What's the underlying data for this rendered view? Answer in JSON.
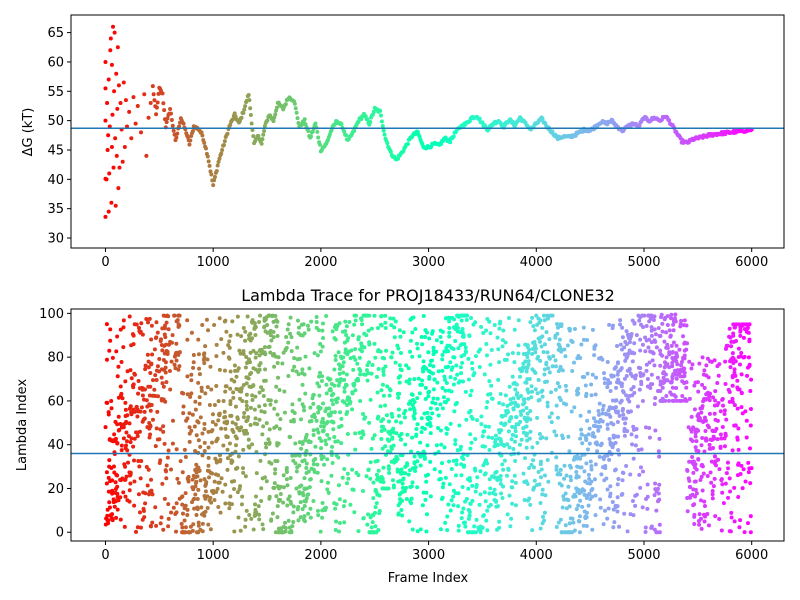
{
  "chart_data": [
    {
      "type": "scatter",
      "title": "",
      "xlabel": "",
      "ylabel": "ΔG (kT)",
      "xlim": [
        -320,
        6300
      ],
      "ylim": [
        28.3,
        68.0
      ],
      "xticks": [
        0,
        1000,
        2000,
        3000,
        4000,
        5000,
        6000
      ],
      "yticks": [
        30,
        35,
        40,
        45,
        50,
        55,
        60,
        65
      ],
      "grid": false,
      "colormap": "rainbow (red at frame 0, violet at frame 6000)",
      "hline": {
        "y": 48.7,
        "color": "#1f77b4"
      },
      "early_scatter": [
        {
          "x": 0,
          "y": 33.6
        },
        {
          "x": 0,
          "y": 40.1
        },
        {
          "x": 0,
          "y": 50.0
        },
        {
          "x": 0,
          "y": 55.5
        },
        {
          "x": 0,
          "y": 60.0
        },
        {
          "x": 10,
          "y": 40.0
        },
        {
          "x": 15,
          "y": 53.0
        },
        {
          "x": 20,
          "y": 45.0
        },
        {
          "x": 25,
          "y": 47.5
        },
        {
          "x": 30,
          "y": 34.5
        },
        {
          "x": 30,
          "y": 57.0
        },
        {
          "x": 35,
          "y": 41.0
        },
        {
          "x": 40,
          "y": 49.0
        },
        {
          "x": 45,
          "y": 62.0
        },
        {
          "x": 50,
          "y": 64.0
        },
        {
          "x": 55,
          "y": 36.0
        },
        {
          "x": 60,
          "y": 45.5
        },
        {
          "x": 60,
          "y": 59.5
        },
        {
          "x": 65,
          "y": 51.0
        },
        {
          "x": 70,
          "y": 66.0
        },
        {
          "x": 75,
          "y": 42.0
        },
        {
          "x": 80,
          "y": 55.0
        },
        {
          "x": 85,
          "y": 65.0
        },
        {
          "x": 90,
          "y": 47.0
        },
        {
          "x": 95,
          "y": 35.5
        },
        {
          "x": 100,
          "y": 58.0
        },
        {
          "x": 105,
          "y": 44.0
        },
        {
          "x": 110,
          "y": 52.0
        },
        {
          "x": 115,
          "y": 62.5
        },
        {
          "x": 120,
          "y": 38.5
        },
        {
          "x": 125,
          "y": 56.0
        },
        {
          "x": 130,
          "y": 42.0
        },
        {
          "x": 140,
          "y": 53.0
        },
        {
          "x": 150,
          "y": 48.5
        },
        {
          "x": 160,
          "y": 43.0
        },
        {
          "x": 170,
          "y": 56.5
        },
        {
          "x": 180,
          "y": 45.5
        },
        {
          "x": 190,
          "y": 53.5
        },
        {
          "x": 200,
          "y": 49.0
        },
        {
          "x": 220,
          "y": 51.5
        },
        {
          "x": 240,
          "y": 47.0
        },
        {
          "x": 260,
          "y": 54.0
        },
        {
          "x": 280,
          "y": 49.5
        },
        {
          "x": 300,
          "y": 52.5
        },
        {
          "x": 330,
          "y": 48.0
        },
        {
          "x": 360,
          "y": 54.5
        },
        {
          "x": 380,
          "y": 44.0
        },
        {
          "x": 400,
          "y": 50.5
        },
        {
          "x": 420,
          "y": 53.0
        }
      ],
      "trace": [
        [
          440,
          55.8
        ],
        [
          470,
          51.0
        ],
        [
          500,
          55.5
        ],
        [
          530,
          54.5
        ],
        [
          560,
          49.0
        ],
        [
          600,
          52.0
        ],
        [
          650,
          46.5
        ],
        [
          700,
          50.5
        ],
        [
          750,
          48.0
        ],
        [
          780,
          46.0
        ],
        [
          820,
          49.0
        ],
        [
          870,
          48.5
        ],
        [
          900,
          47.5
        ],
        [
          950,
          44.0
        ],
        [
          1000,
          39.0
        ],
        [
          1050,
          43.0
        ],
        [
          1100,
          46.0
        ],
        [
          1150,
          49.0
        ],
        [
          1200,
          51.0
        ],
        [
          1240,
          49.5
        ],
        [
          1280,
          51.5
        ],
        [
          1330,
          54.5
        ],
        [
          1350,
          51.0
        ],
        [
          1380,
          46.0
        ],
        [
          1420,
          47.5
        ],
        [
          1450,
          46.0
        ],
        [
          1480,
          49.0
        ],
        [
          1520,
          51.0
        ],
        [
          1560,
          50.0
        ],
        [
          1600,
          53.0
        ],
        [
          1650,
          52.0
        ],
        [
          1700,
          54.0
        ],
        [
          1750,
          53.5
        ],
        [
          1800,
          49.0
        ],
        [
          1850,
          50.0
        ],
        [
          1900,
          47.0
        ],
        [
          1950,
          49.5
        ],
        [
          2000,
          45.0
        ],
        [
          2050,
          46.0
        ],
        [
          2100,
          48.5
        ],
        [
          2150,
          50.0
        ],
        [
          2200,
          49.0
        ],
        [
          2250,
          46.5
        ],
        [
          2300,
          48.0
        ],
        [
          2350,
          50.0
        ],
        [
          2400,
          51.0
        ],
        [
          2450,
          49.5
        ],
        [
          2500,
          52.0
        ],
        [
          2550,
          51.5
        ],
        [
          2600,
          47.0
        ],
        [
          2650,
          44.5
        ],
        [
          2700,
          43.3
        ],
        [
          2750,
          44.5
        ],
        [
          2800,
          46.0
        ],
        [
          2850,
          47.5
        ],
        [
          2900,
          48.0
        ],
        [
          2950,
          45.5
        ],
        [
          3000,
          45.5
        ],
        [
          3050,
          46.0
        ],
        [
          3100,
          45.8
        ],
        [
          3150,
          47.0
        ],
        [
          3200,
          46.5
        ],
        [
          3250,
          48.0
        ],
        [
          3300,
          49.0
        ],
        [
          3350,
          49.5
        ],
        [
          3400,
          50.5
        ],
        [
          3450,
          50.8
        ],
        [
          3500,
          49.5
        ],
        [
          3550,
          48.5
        ],
        [
          3600,
          49.5
        ],
        [
          3650,
          50.0
        ],
        [
          3700,
          49.0
        ],
        [
          3750,
          50.2
        ],
        [
          3800,
          49.2
        ],
        [
          3850,
          50.5
        ],
        [
          3900,
          49.5
        ],
        [
          3950,
          48.5
        ],
        [
          4000,
          49.5
        ],
        [
          4050,
          50.3
        ],
        [
          4100,
          49.0
        ],
        [
          4150,
          48.0
        ],
        [
          4200,
          47.0
        ],
        [
          4250,
          47.3
        ],
        [
          4300,
          47.2
        ],
        [
          4350,
          47.5
        ],
        [
          4400,
          48.0
        ],
        [
          4450,
          48.5
        ],
        [
          4500,
          48.3
        ],
        [
          4550,
          49.0
        ],
        [
          4600,
          49.8
        ],
        [
          4650,
          49.5
        ],
        [
          4700,
          50.0
        ],
        [
          4750,
          49.0
        ],
        [
          4800,
          48.3
        ],
        [
          4850,
          49.0
        ],
        [
          4900,
          49.5
        ],
        [
          4950,
          49.0
        ],
        [
          5000,
          50.5
        ],
        [
          5050,
          50.0
        ],
        [
          5100,
          50.5
        ],
        [
          5150,
          50.0
        ],
        [
          5200,
          50.8
        ],
        [
          5250,
          49.5
        ],
        [
          5300,
          48.0
        ],
        [
          5350,
          46.5
        ],
        [
          5400,
          46.2
        ],
        [
          5450,
          46.8
        ],
        [
          5500,
          47.0
        ],
        [
          5600,
          47.5
        ],
        [
          5700,
          47.8
        ],
        [
          5800,
          48.0
        ],
        [
          5900,
          48.2
        ],
        [
          6000,
          48.5
        ]
      ]
    },
    {
      "type": "scatter",
      "title": "Lambda Trace for PROJ18433/RUN64/CLONE32",
      "xlabel": "Frame Index",
      "ylabel": "Lambda Index",
      "xlim": [
        -320,
        6300
      ],
      "ylim": [
        -4,
        102
      ],
      "xticks": [
        0,
        1000,
        2000,
        3000,
        4000,
        5000,
        6000
      ],
      "yticks": [
        0,
        20,
        40,
        60,
        80,
        100
      ],
      "grid": false,
      "colormap": "rainbow (red at frame 0, violet at frame 6000)",
      "hline": {
        "y": 36,
        "color": "#1f77b4"
      },
      "note": "dense scatter of roughly 6000 lambda samples spanning 0–99; visited lambda bands per frame range listed below",
      "bands": [
        {
          "x0": 0,
          "x1": 60,
          "lo": 3,
          "hi": 98
        },
        {
          "x0": 60,
          "x1": 500,
          "lo": 0,
          "hi": 99
        },
        {
          "x0": 500,
          "x1": 980,
          "lo": 0,
          "hi": 99
        },
        {
          "x0": 980,
          "x1": 1500,
          "lo": 0,
          "hi": 99
        },
        {
          "x0": 1500,
          "x1": 2000,
          "lo": 0,
          "hi": 99
        },
        {
          "x0": 2000,
          "x1": 2560,
          "lo": 0,
          "hi": 99
        },
        {
          "x0": 2560,
          "x1": 2700,
          "lo": 20,
          "hi": 99
        },
        {
          "x0": 2700,
          "x1": 3200,
          "lo": 0,
          "hi": 99
        },
        {
          "x0": 3200,
          "x1": 3700,
          "lo": 0,
          "hi": 99
        },
        {
          "x0": 3700,
          "x1": 4200,
          "lo": 0,
          "hi": 99
        },
        {
          "x0": 4200,
          "x1": 4750,
          "lo": 0,
          "hi": 95
        },
        {
          "x0": 4750,
          "x1": 5150,
          "lo": 0,
          "hi": 99
        },
        {
          "x0": 5150,
          "x1": 5400,
          "lo": 60,
          "hi": 100
        },
        {
          "x0": 5400,
          "x1": 5750,
          "lo": 0,
          "hi": 80
        },
        {
          "x0": 5750,
          "x1": 6000,
          "lo": 0,
          "hi": 95
        }
      ]
    }
  ]
}
